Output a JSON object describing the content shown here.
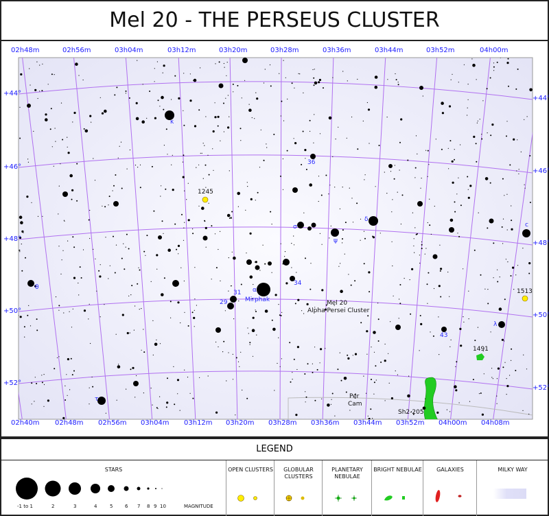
{
  "title": "Mel 20 - THE PERSEUS CLUSTER",
  "ra_top": [
    "02h48m",
    "02h56m",
    "03h04m",
    "03h12m",
    "03h20m",
    "03h28m",
    "03h36m",
    "03h44m",
    "03h52m",
    "04h00m"
  ],
  "ra_bottom": [
    "02h40m",
    "02h48m",
    "02h56m",
    "03h04m",
    "03h12m",
    "03h20m",
    "03h28m",
    "03h36m",
    "03h44m",
    "03h52m",
    "04h00m",
    "04h08m"
  ],
  "dec": [
    "+44°",
    "+46°",
    "+48°",
    "+50°",
    "+52°"
  ],
  "objects": {
    "mel20_name": "Mel 20",
    "mel20_alt": "Alpha Persei Cluster",
    "ngc1245": "1245",
    "ngc1513": "1513",
    "ngc1491": "1491",
    "sh2_205": "Sh2-205",
    "mirphak": "Mirphak",
    "constellation_per": "Per",
    "constellation_cam": "Cam"
  },
  "star_labels": {
    "kappa": "κ",
    "alpha": "α",
    "delta": "δ",
    "sigma": "σ",
    "psi": "ψ",
    "theta": "θ",
    "lambda": "λ",
    "c": "c",
    "tau": "τ",
    "n36": "36",
    "n34": "34",
    "n31": "31",
    "n29": "29",
    "n43": "43"
  },
  "colors": {
    "grid": "#b070f0",
    "labels": "#1a1aff",
    "background": "#eeeefa",
    "open_cluster": "#ffee00",
    "bright_nebula": "#22cc22",
    "galaxy": "#e02020"
  },
  "legend": {
    "title": "LEGEND",
    "stars": "STARS",
    "magnitudes": [
      "-1 to 1",
      "2",
      "3",
      "4",
      "5",
      "6",
      "7",
      "8",
      "9",
      "10"
    ],
    "magnitude_label": "MAGNITUDE",
    "open_clusters": "OPEN CLUSTERS",
    "globular_clusters": "GLOBULAR CLUSTERS",
    "planetary_nebulae": "PLANETARY NEBULAE",
    "bright_nebulae": "BRIGHT NEBULAE",
    "galaxies": "GALAXIES",
    "milky_way": "MILKY WAY"
  }
}
